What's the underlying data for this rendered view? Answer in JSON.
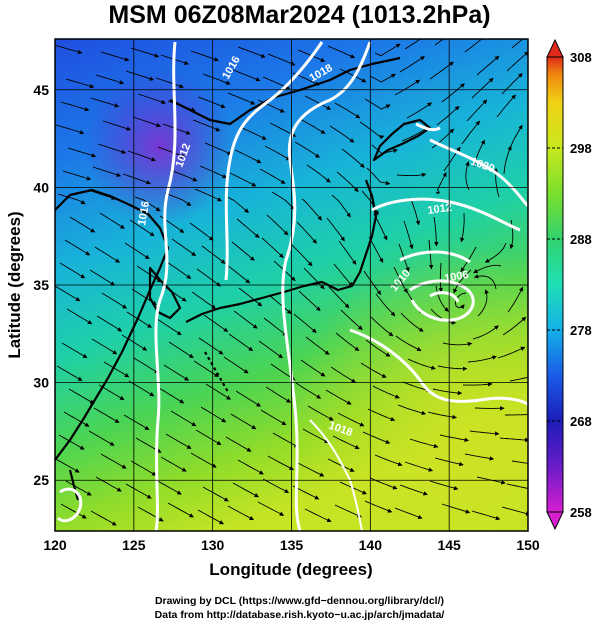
{
  "title": "MSM 06Z08Mar2024 (1013.2hPa)",
  "x_axis": {
    "label": "Longitude (degrees)",
    "range": [
      120,
      150
    ],
    "ticks": [
      120,
      125,
      130,
      135,
      140,
      145,
      150
    ],
    "tick_labels": [
      "120",
      "125",
      "130",
      "135",
      "140",
      "145",
      "150"
    ]
  },
  "y_axis": {
    "label": "Latitude  (degrees)",
    "range": [
      22.4,
      47.6
    ],
    "ticks": [
      25,
      30,
      35,
      40,
      45
    ],
    "tick_labels": [
      "25",
      "30",
      "35",
      "40",
      "45"
    ]
  },
  "colorbar": {
    "ticks": [
      258,
      268,
      278,
      288,
      298,
      308
    ],
    "tick_labels": [
      "258",
      "268",
      "278",
      "288",
      "298",
      "308"
    ],
    "range": [
      258,
      308
    ],
    "colors": [
      "#d81fd0",
      "#6a1cc8",
      "#1c1cb8",
      "#1a5ce6",
      "#14b0e8",
      "#1ee0b4",
      "#32d26e",
      "#7ae02c",
      "#c8e81e",
      "#f0d214",
      "#f08a10",
      "#e02a1a"
    ]
  },
  "contour_labels": [
    "1016",
    "1018",
    "1016",
    "1012",
    "1006",
    "1010",
    "1018",
    "1020",
    "1012"
  ],
  "credits": {
    "line1": "Drawing by DCL (https://www.gfd−dennou.org/library/dcl/)",
    "line2": "Data from http://database.rish.kyoto−u.ac.jp/arch/jmadata/"
  }
}
